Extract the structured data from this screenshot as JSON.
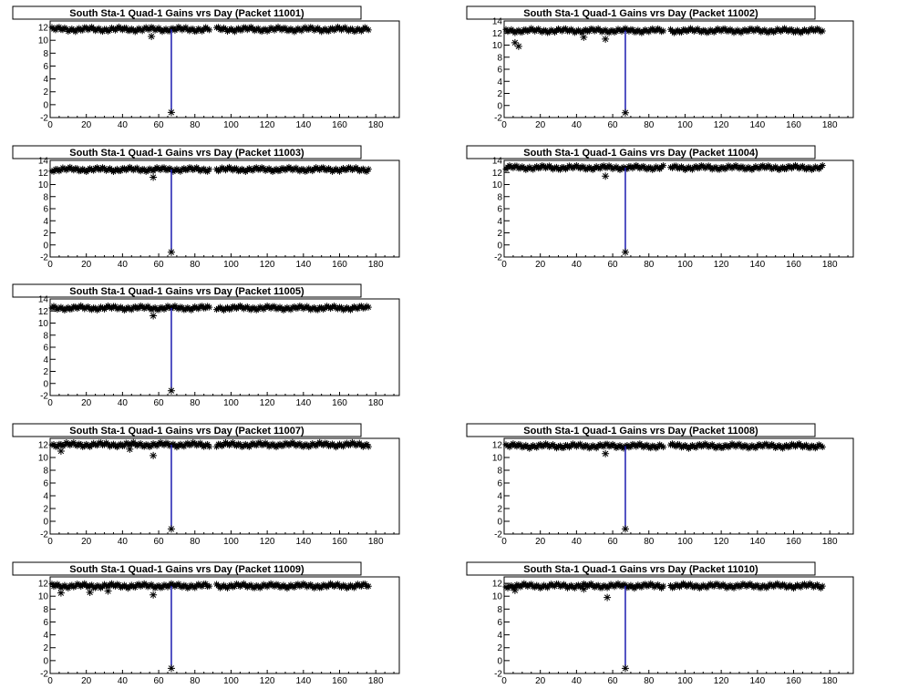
{
  "chart_data": [
    {
      "type": "scatter",
      "title": "South Sta-1 Quad-1 Gains vrs Day (Packet 11001)",
      "level": 11.7,
      "xlim": [
        0,
        193
      ],
      "ylim": [
        -2,
        13
      ],
      "xticks": [
        "0",
        "20",
        "40",
        "60",
        "80",
        "100",
        "120",
        "140",
        "160",
        "180"
      ],
      "yticks": [
        "-2",
        "0",
        "2",
        "4",
        "6",
        "8",
        "10",
        "12"
      ],
      "series": [
        {
          "x": [
            56,
            67
          ],
          "y": [
            10.6,
            -1.2
          ]
        }
      ]
    },
    {
      "type": "scatter",
      "title": "South Sta-1 Quad-1 Gains vrs Day (Packet 11002)",
      "level": 12.4,
      "xlim": [
        0,
        193
      ],
      "ylim": [
        -2,
        14
      ],
      "xticks": [
        "0",
        "20",
        "40",
        "60",
        "80",
        "100",
        "120",
        "140",
        "160",
        "180"
      ],
      "yticks": [
        "-2",
        "0",
        "2",
        "4",
        "6",
        "8",
        "10",
        "12",
        "14"
      ],
      "series": [
        {
          "x": [
            6,
            8,
            44,
            56,
            67
          ],
          "y": [
            10.4,
            9.8,
            11.3,
            11.0,
            -1.2
          ]
        }
      ]
    },
    {
      "type": "scatter",
      "title": "South Sta-1 Quad-1 Gains vrs Day (Packet 11003)",
      "level": 12.5,
      "xlim": [
        0,
        193
      ],
      "ylim": [
        -2,
        14
      ],
      "xticks": [
        "0",
        "20",
        "40",
        "60",
        "80",
        "100",
        "120",
        "140",
        "160",
        "180"
      ],
      "yticks": [
        "-2",
        "0",
        "2",
        "4",
        "6",
        "8",
        "10",
        "12",
        "14"
      ],
      "series": [
        {
          "x": [
            57,
            67
          ],
          "y": [
            11.2,
            -1.2
          ]
        }
      ]
    },
    {
      "type": "scatter",
      "title": "South Sta-1 Quad-1 Gains vrs Day (Packet 11004)",
      "level": 12.8,
      "xlim": [
        0,
        193
      ],
      "ylim": [
        -2,
        14
      ],
      "xticks": [
        "0",
        "20",
        "40",
        "60",
        "80",
        "100",
        "120",
        "140",
        "160",
        "180"
      ],
      "yticks": [
        "-2",
        "0",
        "2",
        "4",
        "6",
        "8",
        "10",
        "12",
        "14"
      ],
      "series": [
        {
          "x": [
            56,
            67
          ],
          "y": [
            11.4,
            -1.2
          ]
        }
      ]
    },
    {
      "type": "scatter",
      "title": "South Sta-1 Quad-1 Gains vrs Day (Packet 11005)",
      "level": 12.5,
      "xlim": [
        0,
        193
      ],
      "ylim": [
        -2,
        14
      ],
      "xticks": [
        "0",
        "20",
        "40",
        "60",
        "80",
        "100",
        "120",
        "140",
        "160",
        "180"
      ],
      "yticks": [
        "-2",
        "0",
        "2",
        "4",
        "6",
        "8",
        "10",
        "12",
        "14"
      ],
      "series": [
        {
          "x": [
            57,
            67
          ],
          "y": [
            11.2,
            -1.2
          ]
        }
      ]
    },
    {
      "type": "scatter",
      "title": "South Sta-1 Quad-1 Gains vrs Day (Packet 11007)",
      "level": 12.0,
      "xlim": [
        0,
        193
      ],
      "ylim": [
        -2,
        13
      ],
      "xticks": [
        "0",
        "20",
        "40",
        "60",
        "80",
        "100",
        "120",
        "140",
        "160",
        "180"
      ],
      "yticks": [
        "-2",
        "0",
        "2",
        "4",
        "6",
        "8",
        "10",
        "12"
      ],
      "series": [
        {
          "x": [
            6,
            44,
            57,
            67
          ],
          "y": [
            11.0,
            11.3,
            10.3,
            -1.2
          ]
        }
      ]
    },
    {
      "type": "scatter",
      "title": "South Sta-1 Quad-1 Gains vrs Day (Packet 11008)",
      "level": 11.8,
      "xlim": [
        0,
        193
      ],
      "ylim": [
        -2,
        13
      ],
      "xticks": [
        "0",
        "20",
        "40",
        "60",
        "80",
        "100",
        "120",
        "140",
        "160",
        "180"
      ],
      "yticks": [
        "-2",
        "0",
        "2",
        "4",
        "6",
        "8",
        "10",
        "12"
      ],
      "series": [
        {
          "x": [
            56,
            67
          ],
          "y": [
            10.6,
            -1.2
          ]
        }
      ]
    },
    {
      "type": "scatter",
      "title": "South Sta-1 Quad-1 Gains vrs Day (Packet 11009)",
      "level": 11.6,
      "xlim": [
        0,
        193
      ],
      "ylim": [
        -2,
        13
      ],
      "xticks": [
        "0",
        "20",
        "40",
        "60",
        "80",
        "100",
        "120",
        "140",
        "160",
        "180"
      ],
      "yticks": [
        "-2",
        "0",
        "2",
        "4",
        "6",
        "8",
        "10",
        "12"
      ],
      "series": [
        {
          "x": [
            6,
            22,
            32,
            57,
            67
          ],
          "y": [
            10.5,
            10.6,
            10.8,
            10.2,
            -1.2
          ]
        }
      ]
    },
    {
      "type": "scatter",
      "title": "South Sta-1 Quad-1 Gains vrs Day (Packet 11010)",
      "level": 11.6,
      "xlim": [
        0,
        193
      ],
      "ylim": [
        -2,
        13
      ],
      "xticks": [
        "0",
        "20",
        "40",
        "60",
        "80",
        "100",
        "120",
        "140",
        "160",
        "180"
      ],
      "yticks": [
        "-2",
        "0",
        "2",
        "4",
        "6",
        "8",
        "10",
        "12"
      ],
      "series": [
        {
          "x": [
            6,
            44,
            57,
            67
          ],
          "y": [
            10.9,
            11.1,
            9.8,
            -1.2
          ]
        }
      ]
    }
  ],
  "style": {
    "marker_color": "#000000",
    "line_color": "#1b1bb0",
    "frame_color": "#000000"
  }
}
